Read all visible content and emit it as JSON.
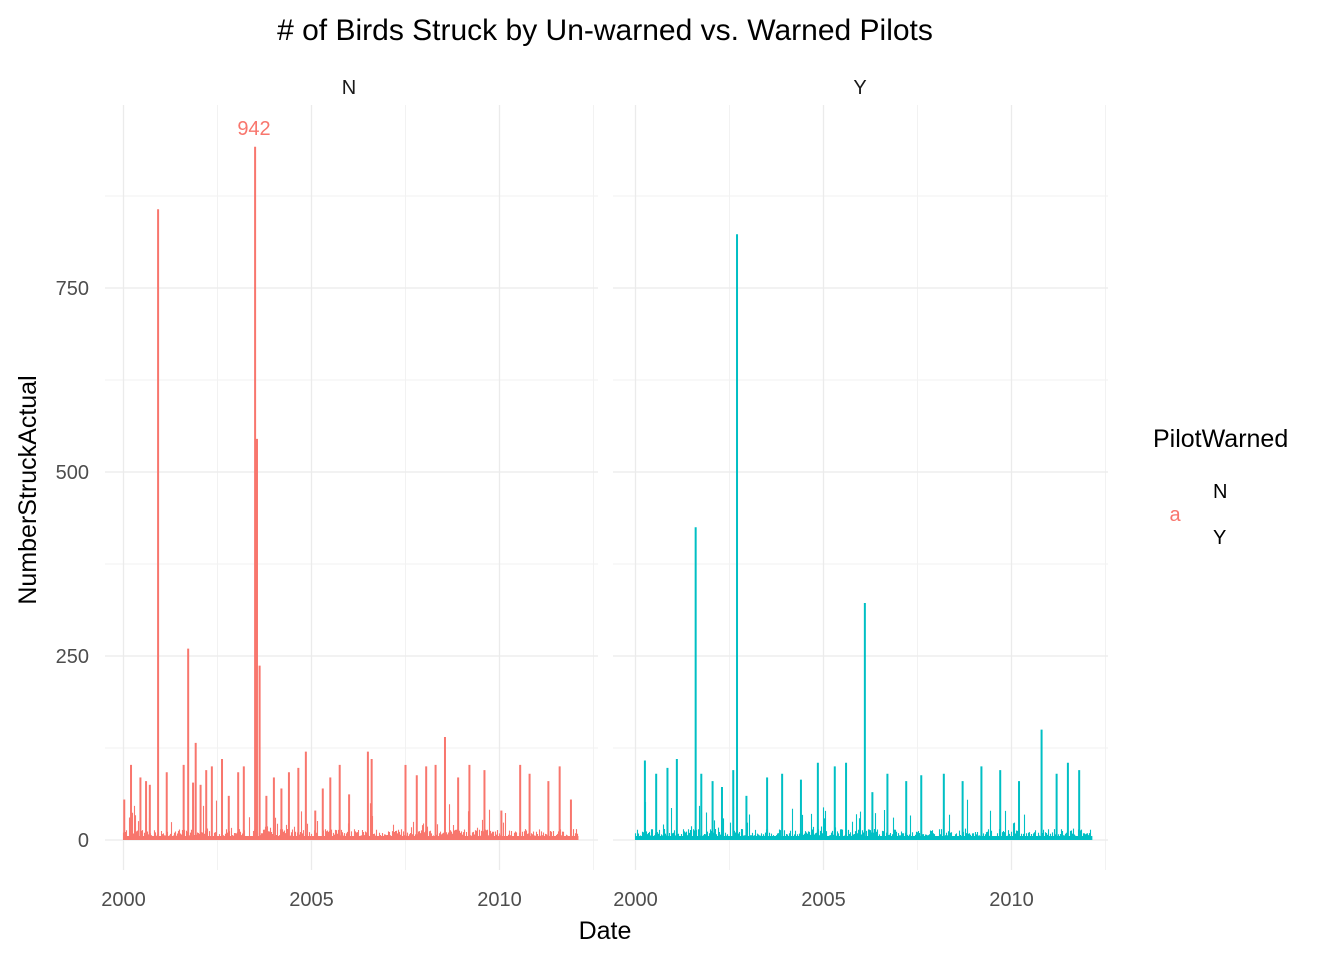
{
  "chart_data": {
    "type": "line",
    "title": "# of Birds Struck by Un-warned vs. Warned Pilots",
    "xlabel": "Date",
    "ylabel": "NumberStruckActual",
    "xlim": [
      2000,
      2012
    ],
    "ylim": [
      0,
      950
    ],
    "x_ticks": [
      "2000",
      "2005",
      "2010"
    ],
    "y_ticks": [
      "0",
      "250",
      "500",
      "750"
    ],
    "grid": true,
    "legend": {
      "title": "PilotWarned",
      "position": "right",
      "key_glyph": "a",
      "entries": [
        "N",
        "Y"
      ]
    },
    "facets": [
      {
        "strip": "N",
        "color": "#F8766D",
        "annotation": {
          "text": "942",
          "x": 2003.5,
          "y": 942
        },
        "spikes": [
          {
            "x": 2000.02,
            "y": 55
          },
          {
            "x": 2000.2,
            "y": 102
          },
          {
            "x": 2000.45,
            "y": 85
          },
          {
            "x": 2000.6,
            "y": 80
          },
          {
            "x": 2000.7,
            "y": 75
          },
          {
            "x": 2000.92,
            "y": 857
          },
          {
            "x": 2001.15,
            "y": 92
          },
          {
            "x": 2001.6,
            "y": 102
          },
          {
            "x": 2001.72,
            "y": 260
          },
          {
            "x": 2001.85,
            "y": 78
          },
          {
            "x": 2001.92,
            "y": 132
          },
          {
            "x": 2002.05,
            "y": 75
          },
          {
            "x": 2002.2,
            "y": 95
          },
          {
            "x": 2002.35,
            "y": 100
          },
          {
            "x": 2002.62,
            "y": 110
          },
          {
            "x": 2002.8,
            "y": 60
          },
          {
            "x": 2003.05,
            "y": 92
          },
          {
            "x": 2003.2,
            "y": 100
          },
          {
            "x": 2003.5,
            "y": 942
          },
          {
            "x": 2003.55,
            "y": 545
          },
          {
            "x": 2003.62,
            "y": 237
          },
          {
            "x": 2003.8,
            "y": 60
          },
          {
            "x": 2004.0,
            "y": 85
          },
          {
            "x": 2004.2,
            "y": 70
          },
          {
            "x": 2004.4,
            "y": 92
          },
          {
            "x": 2004.65,
            "y": 98
          },
          {
            "x": 2004.85,
            "y": 120
          },
          {
            "x": 2005.1,
            "y": 40
          },
          {
            "x": 2005.3,
            "y": 70
          },
          {
            "x": 2005.5,
            "y": 85
          },
          {
            "x": 2005.75,
            "y": 102
          },
          {
            "x": 2006.0,
            "y": 62
          },
          {
            "x": 2006.5,
            "y": 120
          },
          {
            "x": 2006.6,
            "y": 110
          },
          {
            "x": 2007.5,
            "y": 102
          },
          {
            "x": 2007.8,
            "y": 88
          },
          {
            "x": 2008.05,
            "y": 100
          },
          {
            "x": 2008.3,
            "y": 102
          },
          {
            "x": 2008.55,
            "y": 140
          },
          {
            "x": 2008.9,
            "y": 85
          },
          {
            "x": 2009.2,
            "y": 102
          },
          {
            "x": 2009.6,
            "y": 95
          },
          {
            "x": 2010.05,
            "y": 40
          },
          {
            "x": 2010.55,
            "y": 102
          },
          {
            "x": 2010.8,
            "y": 90
          },
          {
            "x": 2011.3,
            "y": 80
          },
          {
            "x": 2011.6,
            "y": 100
          },
          {
            "x": 2011.9,
            "y": 55
          }
        ]
      },
      {
        "strip": "Y",
        "color": "#00BFC4",
        "spikes": [
          {
            "x": 2000.25,
            "y": 108
          },
          {
            "x": 2000.55,
            "y": 90
          },
          {
            "x": 2000.85,
            "y": 98
          },
          {
            "x": 2001.1,
            "y": 110
          },
          {
            "x": 2001.6,
            "y": 425
          },
          {
            "x": 2001.75,
            "y": 90
          },
          {
            "x": 2002.05,
            "y": 80
          },
          {
            "x": 2002.3,
            "y": 72
          },
          {
            "x": 2002.6,
            "y": 95
          },
          {
            "x": 2002.7,
            "y": 823
          },
          {
            "x": 2002.95,
            "y": 60
          },
          {
            "x": 2003.5,
            "y": 85
          },
          {
            "x": 2003.9,
            "y": 90
          },
          {
            "x": 2004.4,
            "y": 82
          },
          {
            "x": 2004.85,
            "y": 105
          },
          {
            "x": 2005.3,
            "y": 100
          },
          {
            "x": 2005.6,
            "y": 105
          },
          {
            "x": 2006.1,
            "y": 322
          },
          {
            "x": 2006.3,
            "y": 65
          },
          {
            "x": 2006.7,
            "y": 90
          },
          {
            "x": 2007.2,
            "y": 80
          },
          {
            "x": 2007.6,
            "y": 88
          },
          {
            "x": 2008.2,
            "y": 90
          },
          {
            "x": 2008.7,
            "y": 80
          },
          {
            "x": 2009.2,
            "y": 100
          },
          {
            "x": 2009.7,
            "y": 95
          },
          {
            "x": 2010.2,
            "y": 80
          },
          {
            "x": 2010.8,
            "y": 150
          },
          {
            "x": 2011.2,
            "y": 90
          },
          {
            "x": 2011.5,
            "y": 105
          },
          {
            "x": 2011.8,
            "y": 95
          }
        ]
      }
    ]
  }
}
